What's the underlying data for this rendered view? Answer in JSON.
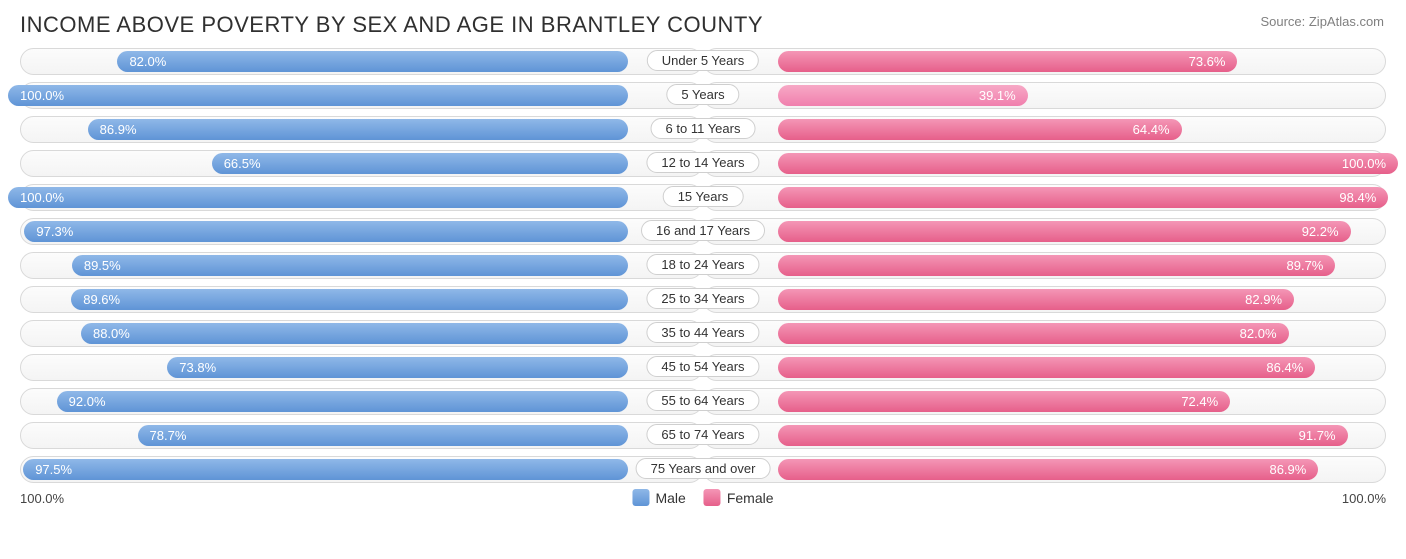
{
  "title": "INCOME ABOVE POVERTY BY SEX AND AGE IN BRANTLEY COUNTY",
  "source": "Source: ZipAtlas.com",
  "male_color_top": "#8fb8e8",
  "male_color_bot": "#5f94d6",
  "female_color_top": "#f496b6",
  "female_color_bot": "#e65f8a",
  "female_alt_top": "#f7a9c6",
  "female_alt_bot": "#f07fad",
  "track_border": "#d9d9d9",
  "legend": {
    "male": "Male",
    "female": "Female"
  },
  "axis": {
    "left": "100.0%",
    "right": "100.0%"
  },
  "rows": [
    {
      "cat": "Under 5 Years",
      "male": 82.0,
      "female": 73.6,
      "alt": false
    },
    {
      "cat": "5 Years",
      "male": 100.0,
      "female": 39.1,
      "alt": true
    },
    {
      "cat": "6 to 11 Years",
      "male": 86.9,
      "female": 64.4,
      "alt": false
    },
    {
      "cat": "12 to 14 Years",
      "male": 66.5,
      "female": 100.0,
      "alt": false
    },
    {
      "cat": "15 Years",
      "male": 100.0,
      "female": 98.4,
      "alt": false
    },
    {
      "cat": "16 and 17 Years",
      "male": 97.3,
      "female": 92.2,
      "alt": false
    },
    {
      "cat": "18 to 24 Years",
      "male": 89.5,
      "female": 89.7,
      "alt": false
    },
    {
      "cat": "25 to 34 Years",
      "male": 89.6,
      "female": 82.9,
      "alt": false
    },
    {
      "cat": "35 to 44 Years",
      "male": 88.0,
      "female": 82.0,
      "alt": false
    },
    {
      "cat": "45 to 54 Years",
      "male": 73.8,
      "female": 86.4,
      "alt": false
    },
    {
      "cat": "55 to 64 Years",
      "male": 92.0,
      "female": 72.4,
      "alt": false
    },
    {
      "cat": "65 to 74 Years",
      "male": 78.7,
      "female": 91.7,
      "alt": false
    },
    {
      "cat": "75 Years and over",
      "male": 97.5,
      "female": 86.9,
      "alt": false
    }
  ]
}
